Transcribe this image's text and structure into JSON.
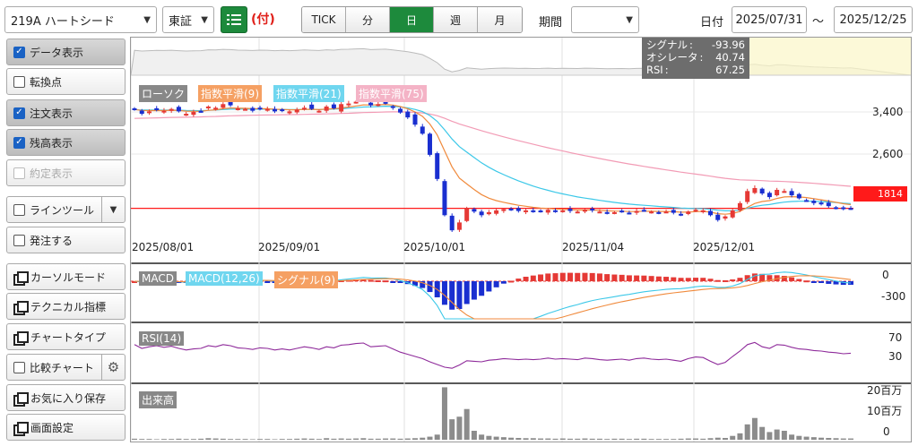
{
  "header": {
    "stock_select": "219A ハートシード",
    "market_select": "東証",
    "list_icon": "list-icon",
    "order_flag": "(付)",
    "intervals": [
      "TICK",
      "分",
      "日",
      "週",
      "月"
    ],
    "active_interval": "日",
    "period_label": "期間",
    "period_value": "",
    "date_label": "日付",
    "date_from": "2025/07/31",
    "date_sep": "～",
    "date_to": "2025/12/25"
  },
  "sidebar": {
    "items": [
      {
        "label": "データ表示",
        "type": "checkbox",
        "checked": true
      },
      {
        "label": "転換点",
        "type": "checkbox",
        "checked": false
      },
      {
        "label": "注文表示",
        "type": "checkbox",
        "checked": true
      },
      {
        "label": "残高表示",
        "type": "checkbox",
        "checked": true
      },
      {
        "label": "約定表示",
        "type": "checkbox",
        "checked": false,
        "disabled": true
      },
      {
        "label": "ラインツール",
        "type": "checkbox",
        "checked": false,
        "dropdown": true
      },
      {
        "label": "発注する",
        "type": "checkbox",
        "checked": false
      },
      {
        "label": "カーソルモード",
        "type": "window"
      },
      {
        "label": "テクニカル指標",
        "type": "window"
      },
      {
        "label": "チャートタイプ",
        "type": "window"
      },
      {
        "label": "比較チャート",
        "type": "checkbox",
        "checked": false,
        "gear": true
      },
      {
        "label": "お気に入り保存",
        "type": "window"
      },
      {
        "label": "画面設定",
        "type": "window"
      }
    ]
  },
  "info_box": {
    "lines": [
      {
        "label": "シグナル",
        "value": "-93.96"
      },
      {
        "label": "オシレータ",
        "value": "40.74"
      },
      {
        "label": "RSI",
        "value": "67.25"
      }
    ]
  },
  "legend": {
    "candle": "ローソク",
    "ema9": "指数平滑(9)",
    "ema21": "指数平滑(21)",
    "ema75": "指数平滑(75)",
    "macd": "MACD",
    "macd_params": "MACD(12,26)",
    "signal": "シグナル(9)",
    "rsi": "RSI(14)",
    "volume": "出来高"
  },
  "colors": {
    "up": "#e53935",
    "down": "#1a2fd0",
    "ema9": "#f08a3c",
    "ema21": "#3cc8e8",
    "ema75": "#f29bb5",
    "rsi": "#8e2a9a",
    "vol": "#8c8c8c",
    "active": "#1d8a3c",
    "price_marker": "#ff1a1a"
  },
  "chart_data": {
    "type": "candlestick",
    "price_ticks": [
      "3,400",
      "2,600"
    ],
    "current_price": "1814",
    "date_ticks": [
      "2025/08/01",
      "2025/09/01",
      "2025/10/01",
      "2025/11/04",
      "2025/12/01"
    ],
    "macd_ticks": [
      "0",
      "-300"
    ],
    "rsi_ticks": [
      "70",
      "30"
    ],
    "volume_ticks": [
      "20百万",
      "10百万",
      "0"
    ],
    "close": [
      3450,
      3380,
      3420,
      3440,
      3430,
      3460,
      3420,
      3380,
      3410,
      3420,
      3500,
      3480,
      3540,
      3520,
      3470,
      3460,
      3430,
      3470,
      3460,
      3420,
      3440,
      3420,
      3450,
      3480,
      3460,
      3430,
      3500,
      3470,
      3540,
      3550,
      3580,
      3600,
      3520,
      3540,
      3560,
      3480,
      3400,
      3320,
      3200,
      3050,
      2700,
      2300,
      1700,
      1450,
      1580,
      1820,
      1760,
      1700,
      1750,
      1780,
      1800,
      1790,
      1770,
      1780,
      1760,
      1770,
      1790,
      1760,
      1780,
      1770,
      1760,
      1790,
      1780,
      1760,
      1740,
      1750,
      1760,
      1740,
      1770,
      1780,
      1760,
      1750,
      1760,
      1740,
      1720,
      1760,
      1790,
      1780,
      1700,
      1620,
      1680,
      1780,
      1900,
      2100,
      2150,
      2060,
      2000,
      2120,
      2100,
      2030,
      1980,
      1950,
      1900,
      1880,
      1850,
      1830,
      1800,
      1814
    ],
    "rsi": [
      62,
      55,
      58,
      60,
      57,
      59,
      55,
      52,
      54,
      55,
      60,
      58,
      62,
      60,
      56,
      55,
      53,
      56,
      55,
      52,
      54,
      52,
      55,
      58,
      56,
      53,
      58,
      56,
      61,
      62,
      64,
      65,
      58,
      59,
      60,
      54,
      48,
      44,
      40,
      36,
      30,
      25,
      20,
      18,
      24,
      32,
      31,
      30,
      33,
      34,
      36,
      35,
      34,
      35,
      34,
      35,
      37,
      35,
      36,
      35,
      34,
      37,
      36,
      34,
      33,
      34,
      35,
      33,
      36,
      37,
      35,
      34,
      35,
      33,
      31,
      36,
      39,
      38,
      31,
      25,
      29,
      40,
      50,
      62,
      66,
      58,
      55,
      62,
      61,
      57,
      54,
      53,
      51,
      50,
      48,
      47,
      45,
      46
    ],
    "volume": [
      0.4,
      0.3,
      0.3,
      0.2,
      0.3,
      0.3,
      0.4,
      0.3,
      0.3,
      0.4,
      0.6,
      0.5,
      0.4,
      0.3,
      0.3,
      0.3,
      0.2,
      0.3,
      0.3,
      0.2,
      0.3,
      0.3,
      0.4,
      0.5,
      0.4,
      0.3,
      0.6,
      0.4,
      0.5,
      0.4,
      0.5,
      0.6,
      0.4,
      0.4,
      0.5,
      0.5,
      0.4,
      0.5,
      0.6,
      0.8,
      1.2,
      2.0,
      20.5,
      8.0,
      9.0,
      12.0,
      3.5,
      2.0,
      1.5,
      1.2,
      1.0,
      0.8,
      0.7,
      0.6,
      0.6,
      0.5,
      0.5,
      0.4,
      0.5,
      0.4,
      0.4,
      0.5,
      0.4,
      0.4,
      0.3,
      0.4,
      0.4,
      0.3,
      0.4,
      0.4,
      0.3,
      0.3,
      0.3,
      0.3,
      0.4,
      0.5,
      0.5,
      0.4,
      0.6,
      0.8,
      0.7,
      1.5,
      2.5,
      6.0,
      8.5,
      5.0,
      3.0,
      4.0,
      3.5,
      2.0,
      1.5,
      1.2,
      1.0,
      0.8,
      0.7,
      0.6,
      0.5,
      0.5
    ]
  }
}
